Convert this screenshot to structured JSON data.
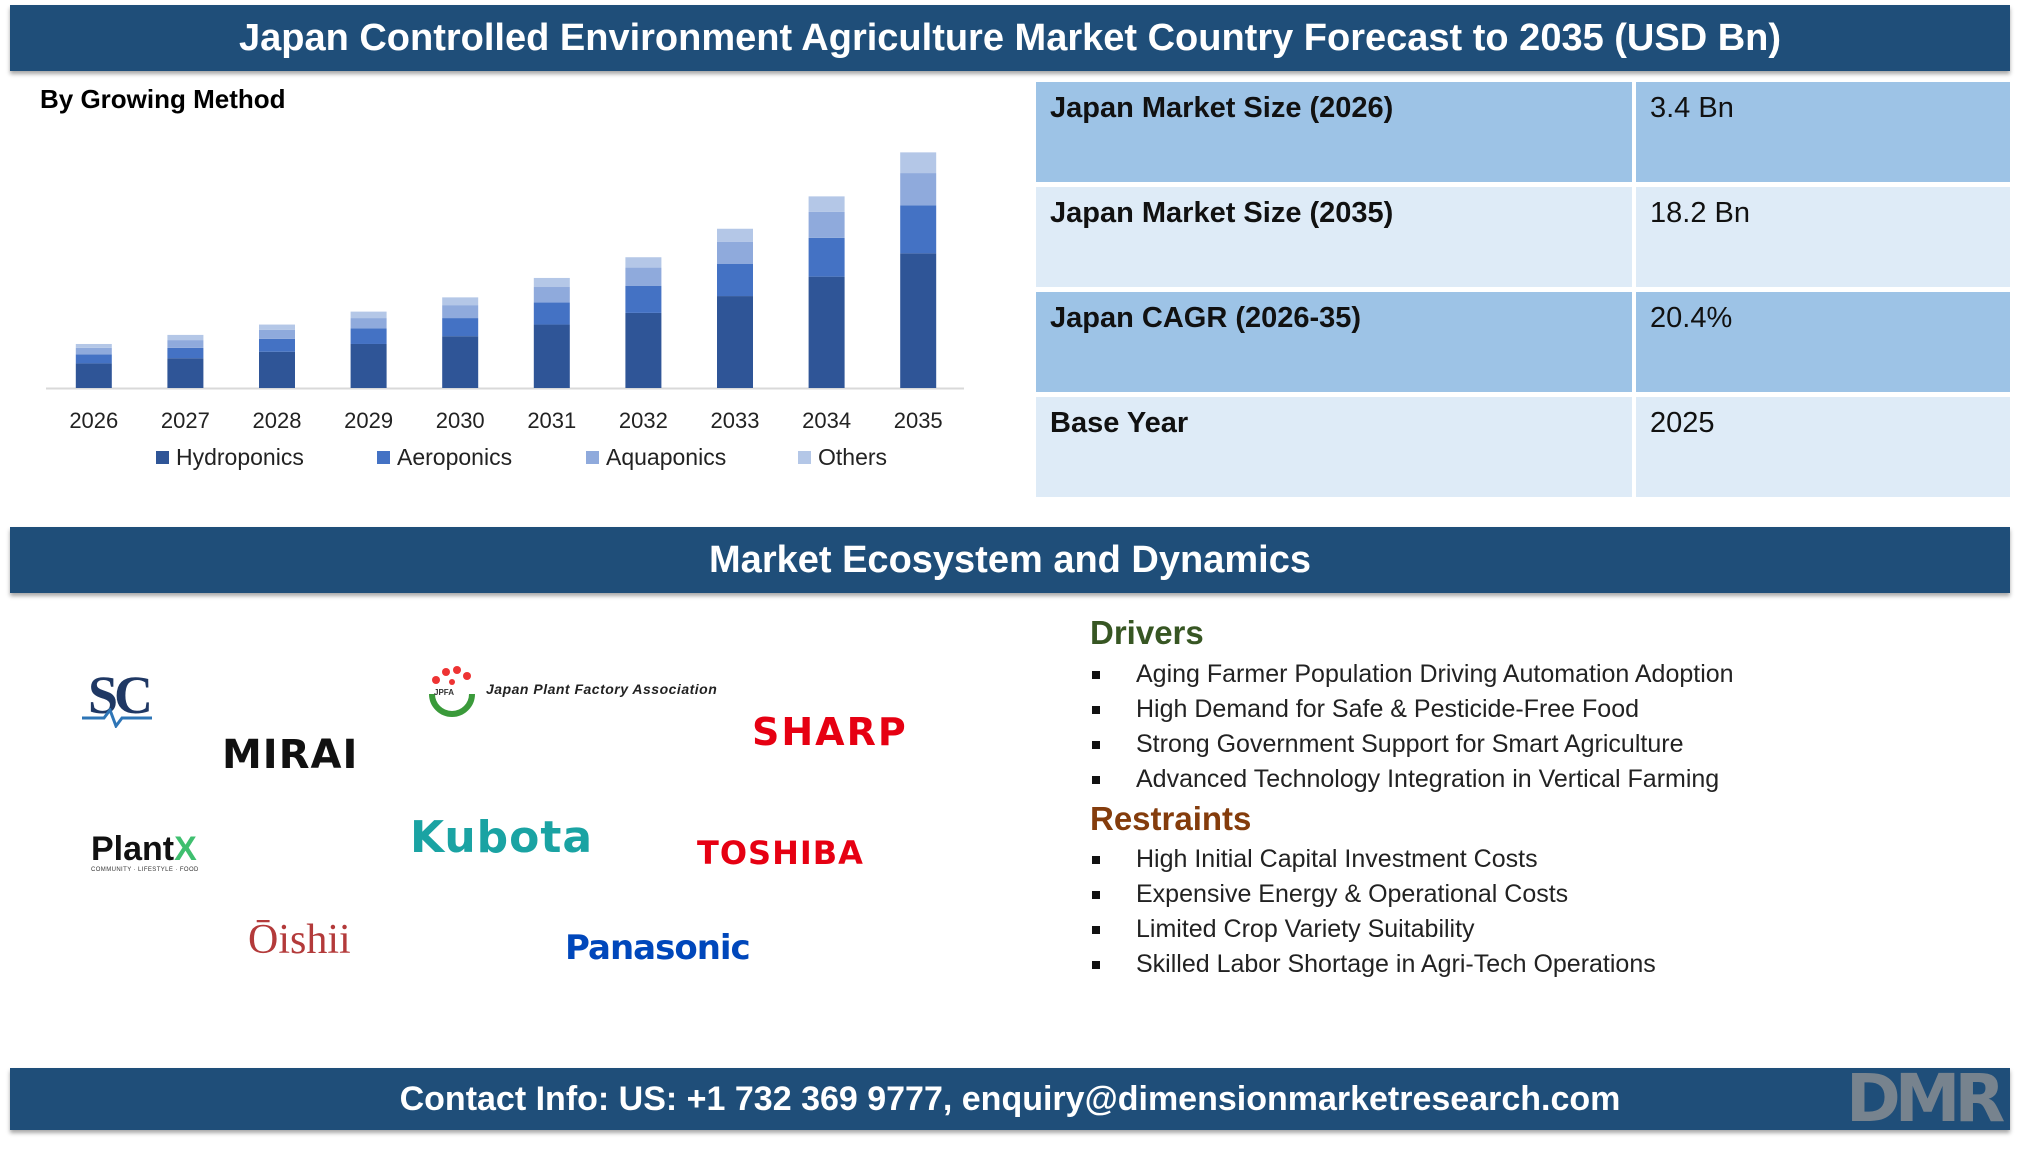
{
  "header": {
    "title": "Japan Controlled Environment Agriculture Market Country Forecast to 2035 (USD Bn)"
  },
  "chart": {
    "subtitle": "By Growing Method"
  },
  "chart_data": {
    "type": "bar",
    "stacked": true,
    "categories": [
      "2026",
      "2027",
      "2028",
      "2029",
      "2030",
      "2031",
      "2032",
      "2033",
      "2034",
      "2035"
    ],
    "series": [
      {
        "name": "Hydroponics",
        "color": "#2f5597",
        "values": [
          1.9,
          2.3,
          2.8,
          3.4,
          4.0,
          4.9,
          5.8,
          7.1,
          8.6,
          10.4
        ]
      },
      {
        "name": "Aeroponics",
        "color": "#4472c4",
        "values": [
          0.7,
          0.8,
          1.0,
          1.2,
          1.4,
          1.7,
          2.1,
          2.5,
          3.0,
          3.7
        ]
      },
      {
        "name": "Aquaponics",
        "color": "#8faadc",
        "values": [
          0.5,
          0.6,
          0.7,
          0.8,
          1.0,
          1.2,
          1.4,
          1.7,
          2.0,
          2.5
        ]
      },
      {
        "name": "Others",
        "color": "#b4c7e7",
        "values": [
          0.3,
          0.4,
          0.4,
          0.5,
          0.6,
          0.7,
          0.8,
          1.0,
          1.2,
          1.6
        ]
      }
    ],
    "ylim": [
      0,
      19
    ],
    "grid": false,
    "legend_position": "bottom"
  },
  "stats": [
    {
      "label": "Japan Market Size (2026)",
      "value": "3.4 Bn"
    },
    {
      "label": "Japan Market Size (2035)",
      "value": "18.2 Bn"
    },
    {
      "label": "Japan CAGR (2026-35)",
      "value": "20.4%"
    },
    {
      "label": "Base Year",
      "value": "2025"
    }
  ],
  "ecosystem": {
    "title": "Market Ecosystem and Dynamics"
  },
  "logos": {
    "sc": "SC",
    "jpfa_mark": "JPFA",
    "jpfa_name": "Japan Plant Factory Association",
    "mirai": "MIRAI",
    "sharp": "SHARP",
    "plantx": "Plant",
    "plantx_x": "X",
    "plantx_tag": "COMMUNITY · LIFESTYLE · FOOD",
    "kubota": "Kubota",
    "toshiba": "TOSHIBA",
    "oishii": "Ōishii",
    "panasonic": "Panasonic",
    "dmr": "DMR"
  },
  "drivers": {
    "title": "Drivers",
    "color": "#375623",
    "items": [
      "Aging Farmer Population Driving Automation Adoption",
      "High Demand for Safe & Pesticide-Free Food",
      "Strong Government Support for Smart Agriculture",
      "Advanced Technology Integration in Vertical Farming"
    ]
  },
  "restraints": {
    "title": "Restraints",
    "color": "#843c0c",
    "items": [
      "High Initial Capital Investment Costs",
      "Expensive Energy & Operational Costs",
      "Limited Crop Variety Suitability",
      "Skilled Labor Shortage in Agri-Tech Operations"
    ]
  },
  "footer": {
    "contact": "Contact Info: US: +1 732 369 9777, enquiry@dimensionmarketresearch.com"
  }
}
